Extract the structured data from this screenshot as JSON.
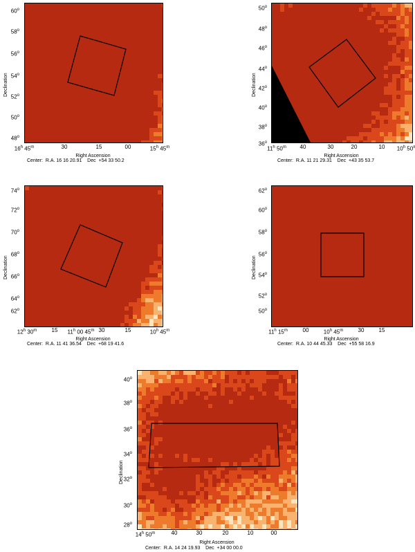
{
  "panels": [
    {
      "ylabel": "Declination",
      "xlabel": "Right Ascension",
      "yticks": [
        "60",
        "58",
        "56",
        "54",
        "52",
        "50",
        "48"
      ],
      "xticks": [
        {
          "h": "16",
          "m": "45",
          "text": ""
        },
        {
          "h": "",
          "m": "",
          "text": "30"
        },
        {
          "h": "",
          "m": "",
          "text": "15"
        },
        {
          "h": "",
          "m": "",
          "text": "00"
        },
        {
          "h": "15",
          "m": "45",
          "text": ""
        }
      ],
      "center": "Center:  R.A. 16 16 20.91    Dec  +54 33 50.2"
    },
    {
      "ylabel": "Declination",
      "xlabel": "Right Ascension",
      "yticks": [
        "50",
        "48",
        "46",
        "44",
        "42",
        "40",
        "38",
        "36"
      ],
      "xticks": [
        {
          "h": "11",
          "m": "50",
          "text": ""
        },
        {
          "h": "",
          "m": "",
          "text": "40"
        },
        {
          "h": "",
          "m": "",
          "text": "30"
        },
        {
          "h": "",
          "m": "",
          "text": "20"
        },
        {
          "h": "",
          "m": "",
          "text": "10"
        },
        {
          "h": "10",
          "m": "50",
          "text": ""
        }
      ],
      "center": "Center:  R.A. 11 21 29.31    Dec  +43 35 53.7"
    },
    {
      "ylabel": "Declination",
      "xlabel": "Right Ascension",
      "yticks": [
        "74",
        "72",
        "70",
        "68",
        "66",
        "64",
        "62"
      ],
      "xticks": [
        {
          "h": "12",
          "m": "30",
          "text": ""
        },
        {
          "h": "",
          "m": "",
          "text": "15"
        },
        {
          "h": "11",
          "m": "45",
          "text": "00"
        },
        {
          "h": "",
          "m": "",
          "text": "30"
        },
        {
          "h": "",
          "m": "",
          "text": "15"
        },
        {
          "h": "10",
          "m": "45",
          "text": ""
        }
      ],
      "center": "Center:  R.A. 11 41 36.54    Dec  +68 19 41.6"
    },
    {
      "ylabel": "Declination",
      "xlabel": "Right Ascension",
      "yticks": [
        "62",
        "60",
        "58",
        "56",
        "54",
        "52",
        "50"
      ],
      "xticks": [
        {
          "h": "11",
          "m": "15",
          "text": ""
        },
        {
          "h": "",
          "m": "",
          "text": "00"
        },
        {
          "h": "10",
          "m": "45",
          "text": ""
        },
        {
          "h": "",
          "m": "",
          "text": "30"
        },
        {
          "h": "",
          "m": "",
          "text": "15"
        }
      ],
      "center": "Center:  R.A. 10 44 45.33    Dec  +55 58 16.9"
    },
    {
      "ylabel": "Declination",
      "xlabel": "Right Ascension",
      "yticks": [
        "40",
        "38",
        "36",
        "34",
        "32",
        "30",
        "28"
      ],
      "xticks": [
        {
          "h": "14",
          "m": "50",
          "text": ""
        },
        {
          "h": "",
          "m": "",
          "text": "40"
        },
        {
          "h": "",
          "m": "",
          "text": "30"
        },
        {
          "h": "",
          "m": "",
          "text": "20"
        },
        {
          "h": "",
          "m": "",
          "text": "10"
        },
        {
          "h": "",
          "m": "",
          "text": "00"
        }
      ],
      "center": "Center:  R.A. 14 24 19.93    Dec  +34 00 00.0"
    }
  ],
  "colors": {
    "background": "#fde6bf",
    "light": "#f9b36e",
    "mid": "#ee7a2c",
    "dark": "#d9471a",
    "darkest": "#b52a10",
    "outline": "#000000"
  }
}
